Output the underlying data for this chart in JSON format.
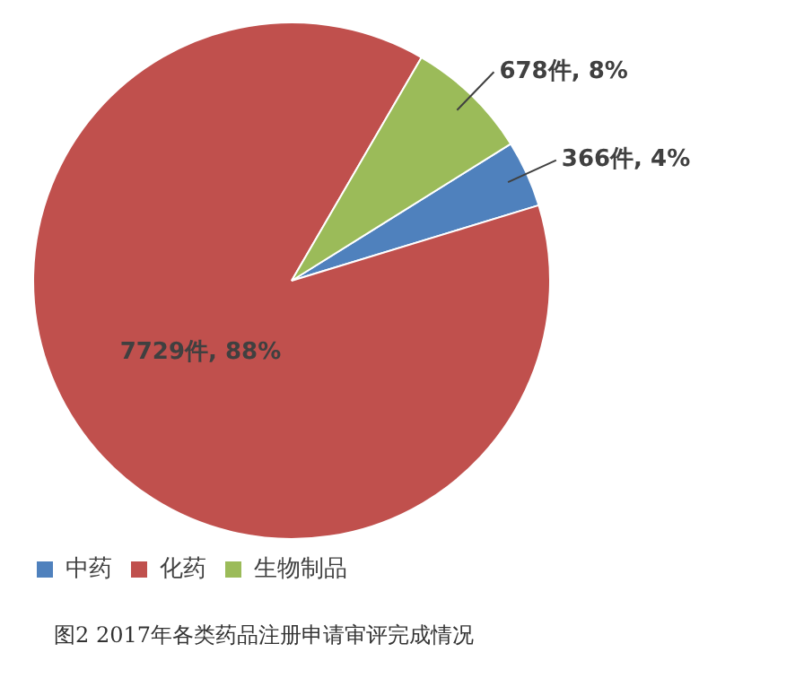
{
  "chart_data": {
    "type": "pie",
    "categories": [
      "中药",
      "化药",
      "生物制品"
    ],
    "values": [
      366,
      7729,
      678
    ],
    "colors": [
      "#4f81bd",
      "#c0504d",
      "#9bbb59"
    ],
    "value_labels": [
      "366件, 4%",
      "7729件, 88%",
      "678件, 8%"
    ],
    "legend": "bottom",
    "annotations": [
      "图2 2017年各类药品注册申请审评完成情况"
    ]
  }
}
